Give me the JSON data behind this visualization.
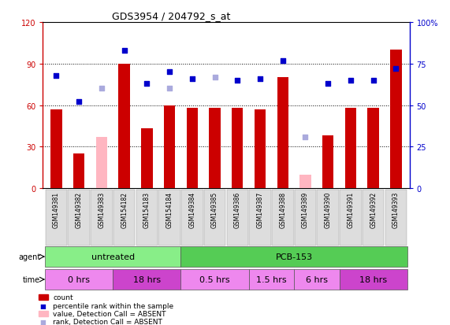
{
  "title": "GDS3954 / 204792_s_at",
  "samples": [
    "GSM149381",
    "GSM149382",
    "GSM149383",
    "GSM154182",
    "GSM154183",
    "GSM154184",
    "GSM149384",
    "GSM149385",
    "GSM149386",
    "GSM149387",
    "GSM149388",
    "GSM149389",
    "GSM149390",
    "GSM149391",
    "GSM149392",
    "GSM149393"
  ],
  "count_values": [
    57,
    25,
    null,
    90,
    43,
    60,
    58,
    58,
    58,
    57,
    80,
    null,
    38,
    58,
    58,
    100
  ],
  "count_absent": [
    null,
    null,
    37,
    null,
    null,
    null,
    null,
    null,
    null,
    null,
    null,
    10,
    null,
    null,
    null,
    null
  ],
  "rank_values": [
    68,
    52,
    null,
    83,
    63,
    70,
    66,
    null,
    65,
    66,
    77,
    null,
    63,
    65,
    65,
    72
  ],
  "rank_absent": [
    null,
    null,
    60,
    null,
    null,
    60,
    null,
    67,
    null,
    null,
    null,
    31,
    null,
    null,
    null,
    null
  ],
  "ylim_left": [
    0,
    120
  ],
  "ylim_right": [
    0,
    100
  ],
  "yticks_left": [
    0,
    30,
    60,
    90,
    120
  ],
  "yticks_right": [
    0,
    25,
    50,
    75,
    100
  ],
  "ytick_labels_left": [
    "0",
    "30",
    "60",
    "90",
    "120"
  ],
  "ytick_labels_right": [
    "0",
    "25",
    "50",
    "75",
    "100%"
  ],
  "bar_color_red": "#CC0000",
  "bar_color_pink": "#FFB6C1",
  "dot_color_blue": "#0000CC",
  "dot_color_lightblue": "#AAAADD",
  "bg_color": "#FFFFFF",
  "plot_bg": "#FFFFFF",
  "agent_groups": [
    {
      "label": "untreated",
      "start": 0,
      "end": 6,
      "color": "#88EE88"
    },
    {
      "label": "PCB-153",
      "start": 6,
      "end": 16,
      "color": "#55CC55"
    }
  ],
  "time_groups": [
    {
      "label": "0 hrs",
      "start": 0,
      "end": 3,
      "color": "#EE88EE"
    },
    {
      "label": "18 hrs",
      "start": 3,
      "end": 6,
      "color": "#CC44CC"
    },
    {
      "label": "0.5 hrs",
      "start": 6,
      "end": 9,
      "color": "#EE88EE"
    },
    {
      "label": "1.5 hrs",
      "start": 9,
      "end": 11,
      "color": "#EE88EE"
    },
    {
      "label": "6 hrs",
      "start": 11,
      "end": 13,
      "color": "#EE88EE"
    },
    {
      "label": "18 hrs",
      "start": 13,
      "end": 16,
      "color": "#CC44CC"
    }
  ]
}
